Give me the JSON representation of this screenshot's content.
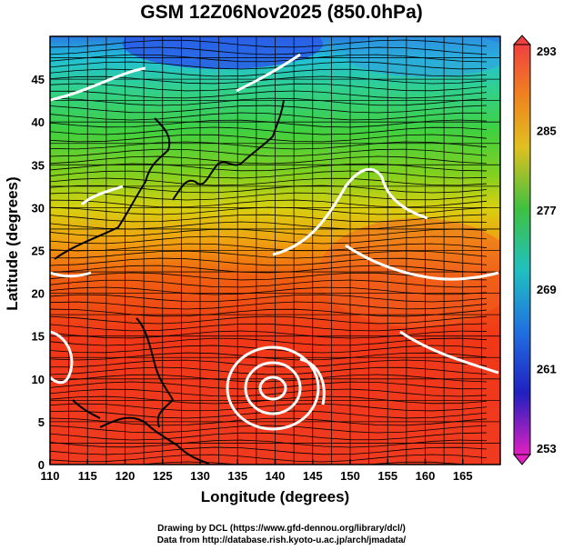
{
  "title": "GSM 12Z06Nov2025 (850.0hPa)",
  "xlabel": "Longitude (degrees)",
  "ylabel": "Latitude  (degrees)",
  "credit_line1": "Drawing by DCL (https://www.gfd-dennou.org/library/dcl/)",
  "credit_line2": "Data from http://database.rish.kyoto-u.ac.jp/arch/jmadata/",
  "map": {
    "lon_range": [
      110,
      170
    ],
    "lat_range": [
      0,
      50
    ],
    "lon_ticks": [
      "110",
      "115",
      "120",
      "125",
      "130",
      "135",
      "140",
      "145",
      "150",
      "155",
      "160",
      "165"
    ],
    "lat_ticks": [
      "0",
      "5",
      "10",
      "15",
      "20",
      "25",
      "30",
      "35",
      "40",
      "45"
    ],
    "variable": "temperature with wind streamlines",
    "colorbar_labels": [
      "293",
      "285",
      "277",
      "269",
      "261",
      "253"
    ],
    "colorbar_range": [
      253,
      293
    ]
  }
}
